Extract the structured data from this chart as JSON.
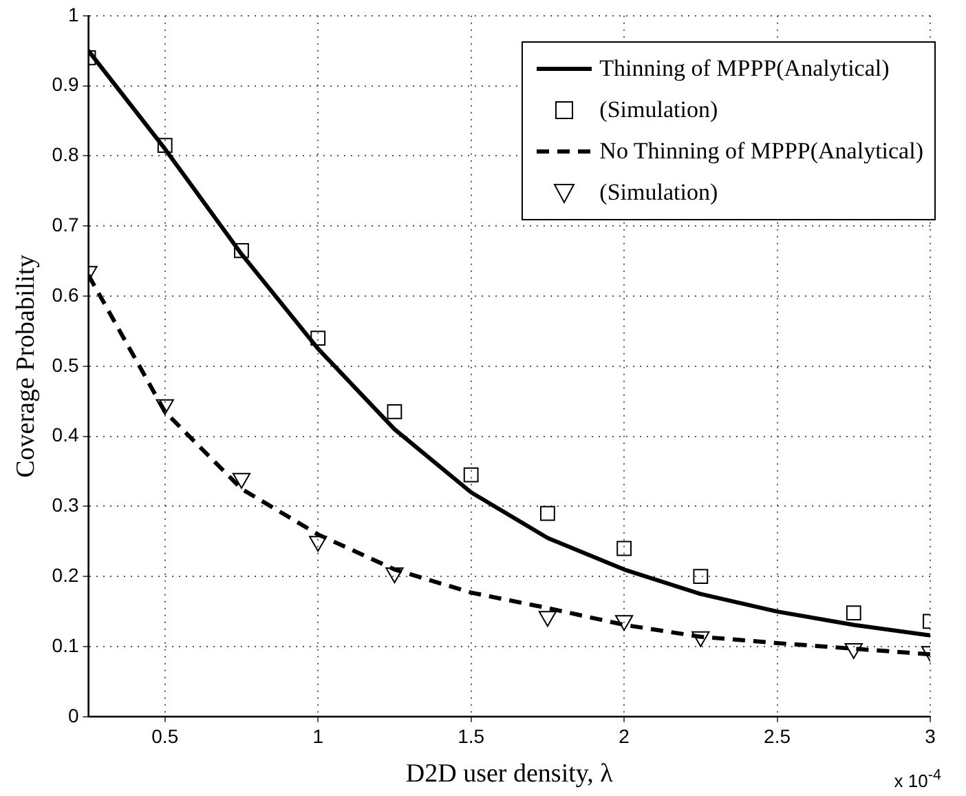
{
  "chart_data": {
    "type": "line",
    "xlabel": "D2D user density, λ",
    "ylabel": "Coverage Probability",
    "xlim": [
      0.25,
      3
    ],
    "xticks": [
      0.5,
      1,
      1.5,
      2,
      2.5,
      3
    ],
    "ylim": [
      0,
      1
    ],
    "yticks": [
      0,
      0.1,
      0.2,
      0.3,
      0.4,
      0.5,
      0.6,
      0.7,
      0.8,
      0.9,
      1
    ],
    "grid": true,
    "legend": "top right",
    "annotations": [
      "x 10$^{-4}$"
    ],
    "series": [
      {
        "name": "Thinning of MPPP(Analytical)",
        "color": "#000000",
        "line_style": "solid",
        "marker": "none",
        "x": [
          0.25,
          0.5,
          0.75,
          1,
          1.25,
          1.5,
          1.75,
          2,
          2.25,
          2.5,
          2.75,
          3
        ],
        "values": [
          0.95,
          0.81,
          0.66,
          0.525,
          0.41,
          0.32,
          0.255,
          0.21,
          0.175,
          0.15,
          0.131,
          0.116
        ]
      },
      {
        "name": "(Simulation)",
        "type": "scatter",
        "color": "#000000",
        "marker": "square",
        "x": [
          0.25,
          0.5,
          0.75,
          1,
          1.25,
          1.5,
          1.75,
          2,
          2.25,
          2.75,
          3
        ],
        "values": [
          0.94,
          0.815,
          0.665,
          0.54,
          0.435,
          0.345,
          0.29,
          0.24,
          0.2,
          0.148,
          0.136
        ]
      },
      {
        "name": "No Thinning of MPPP(Analytical)",
        "color": "#000000",
        "line_style": "dashed",
        "marker": "none",
        "x": [
          0.25,
          0.5,
          0.75,
          1,
          1.25,
          1.5,
          1.75,
          2,
          2.25,
          2.5,
          2.75,
          3
        ],
        "values": [
          0.63,
          0.435,
          0.325,
          0.26,
          0.21,
          0.177,
          0.155,
          0.131,
          0.114,
          0.105,
          0.097,
          0.089
        ]
      },
      {
        "name": "(Simulation)",
        "type": "scatter",
        "color": "#000000",
        "marker": "triangle",
        "x": [
          0.25,
          0.5,
          0.75,
          1,
          1.25,
          1.75,
          2,
          2.25,
          2.75,
          3
        ],
        "values": [
          0.635,
          0.445,
          0.34,
          0.25,
          0.205,
          0.143,
          0.137,
          0.114,
          0.097,
          0.093
        ]
      }
    ]
  }
}
